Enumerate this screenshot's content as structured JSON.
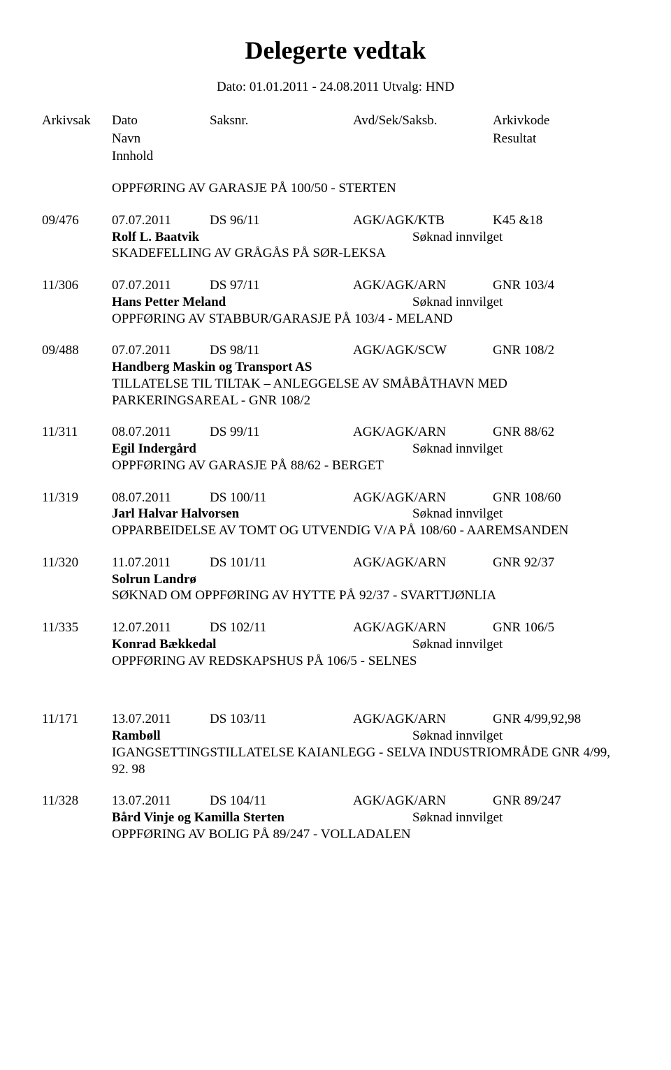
{
  "title": "Delegerte vedtak",
  "subtitle": "Dato: 01.01.2011 - 24.08.2011  Utvalg: HND",
  "headers": {
    "arkivsak": "Arkivsak",
    "dato": "Dato",
    "saksnr": "Saksnr.",
    "avd": "Avd/Sek/Saksb.",
    "arkivkode": "Arkivkode",
    "navn": "Navn",
    "resultat": "Resultat",
    "innhold": "Innhold"
  },
  "intro_desc": "OPPFØRING AV GARASJE PÅ 100/50 - STERTEN",
  "entries": [
    {
      "arkivsak": "09/476",
      "dato": "07.07.2011",
      "saksnr": "DS  96/11",
      "avd": "AGK/AGK/KTB",
      "kode": "K45 &18",
      "name": "Rolf L. Baatvik",
      "resultat": "Søknad innvilget",
      "desc": "SKADEFELLING AV GRÅGÅS PÅ SØR-LEKSA"
    },
    {
      "arkivsak": "11/306",
      "dato": "07.07.2011",
      "saksnr": "DS  97/11",
      "avd": "AGK/AGK/ARN",
      "kode": "GNR 103/4",
      "name": "Hans Petter Meland",
      "resultat": "Søknad innvilget",
      "desc": "OPPFØRING AV STABBUR/GARASJE PÅ 103/4 - MELAND"
    },
    {
      "arkivsak": "09/488",
      "dato": "07.07.2011",
      "saksnr": "DS  98/11",
      "avd": "AGK/AGK/SCW",
      "kode": "GNR 108/2",
      "name": "Handberg Maskin og Transport AS",
      "resultat": "",
      "desc": "TILLATELSE TIL TILTAK – ANLEGGELSE AV SMÅBÅTHAVN MED PARKERINGSAREAL -  GNR 108/2"
    },
    {
      "arkivsak": "11/311",
      "dato": "08.07.2011",
      "saksnr": "DS  99/11",
      "avd": "AGK/AGK/ARN",
      "kode": "GNR 88/62",
      "name": "Egil Indergård",
      "resultat": "Søknad innvilget",
      "desc": "OPPFØRING AV GARASJE PÅ 88/62 - BERGET"
    },
    {
      "arkivsak": "11/319",
      "dato": "08.07.2011",
      "saksnr": "DS  100/11",
      "avd": "AGK/AGK/ARN",
      "kode": "GNR 108/60",
      "name": "Jarl Halvar Halvorsen",
      "resultat": "Søknad innvilget",
      "desc": "OPPARBEIDELSE AV TOMT OG UTVENDIG V/A  PÅ 108/60 - AAREMSANDEN"
    },
    {
      "arkivsak": "11/320",
      "dato": "11.07.2011",
      "saksnr": "DS  101/11",
      "avd": "AGK/AGK/ARN",
      "kode": "GNR 92/37",
      "name": "Solrun Landrø",
      "resultat": "",
      "desc": "SØKNAD OM OPPFØRING AV HYTTE PÅ 92/37 - SVARTTJØNLIA"
    },
    {
      "arkivsak": "11/335",
      "dato": "12.07.2011",
      "saksnr": "DS  102/11",
      "avd": "AGK/AGK/ARN",
      "kode": "GNR 106/5",
      "name": "Konrad Bækkedal",
      "resultat": "Søknad innvilget",
      "desc": "OPPFØRING AV REDSKAPSHUS PÅ 106/5 - SELNES"
    }
  ],
  "entries2": [
    {
      "arkivsak": "11/171",
      "dato": "13.07.2011",
      "saksnr": "DS  103/11",
      "avd": "AGK/AGK/ARN",
      "kode": "GNR 4/99,92,98",
      "name": "Rambøll",
      "resultat": "Søknad innvilget",
      "desc": "IGANGSETTINGSTILLATELSE KAIANLEGG - SELVA INDUSTRIOMRÅDE GNR 4/99, 92. 98"
    },
    {
      "arkivsak": "11/328",
      "dato": "13.07.2011",
      "saksnr": "DS  104/11",
      "avd": "AGK/AGK/ARN",
      "kode": "GNR 89/247",
      "name": "Bård Vinje og Kamilla Sterten",
      "resultat": "Søknad innvilget",
      "desc": "OPPFØRING AV BOLIG PÅ 89/247 - VOLLADALEN"
    }
  ]
}
